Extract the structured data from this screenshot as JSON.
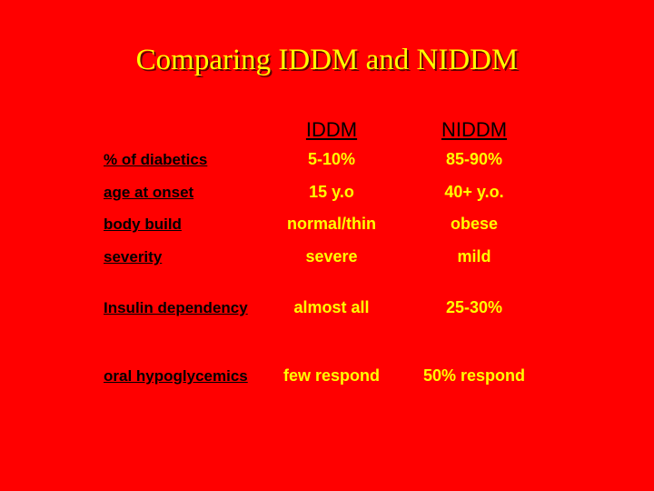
{
  "title": "Comparing IDDM and NIDDM",
  "table": {
    "header": [
      "IDDM",
      "NIDDM"
    ],
    "rows": [
      [
        "% of diabetics",
        "5-10%",
        "85-90%"
      ],
      [
        "age at onset",
        "15 y.o",
        "40+ y.o."
      ],
      [
        "body build",
        "normal/thin",
        "obese"
      ],
      [
        "severity",
        "severe",
        "mild"
      ],
      [
        "Insulin dependency",
        "almost all",
        "25-30%"
      ],
      [
        "oral hypoglycemics",
        "few respond",
        "50% respond"
      ]
    ]
  }
}
